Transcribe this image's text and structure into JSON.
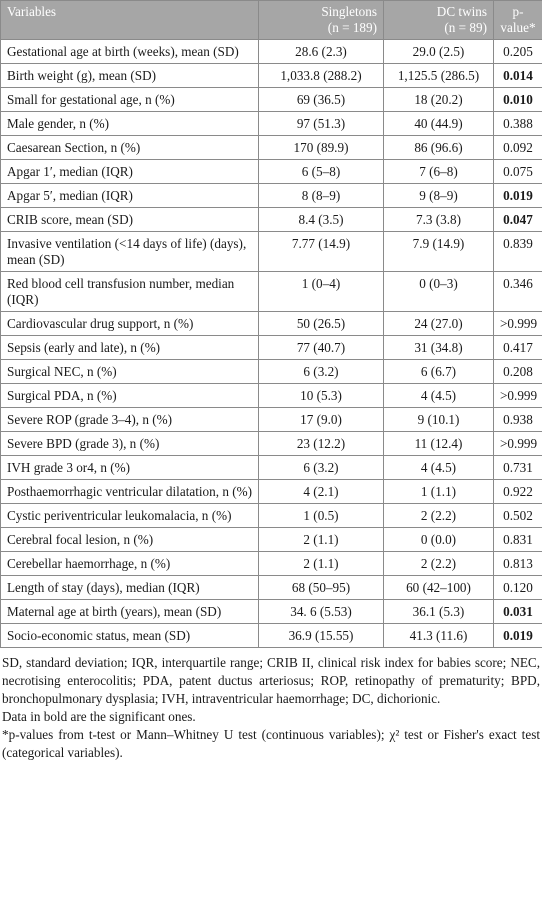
{
  "table": {
    "header": {
      "variables": "Variables",
      "col1": "Singletons",
      "col1_n": "(n = 189)",
      "col2": "DC twins",
      "col2_n": "(n = 89)",
      "col3": "p-value*"
    },
    "rows": [
      {
        "cells": [
          "Gestational age at birth (weeks), mean (SD)",
          "28.6 (2.3)",
          "29.0 (2.5)",
          "0.205"
        ],
        "significant": false
      },
      {
        "cells": [
          "Birth weight (g), mean (SD)",
          "1,033.8 (288.2)",
          "1,125.5 (286.5)",
          "0.014"
        ],
        "significant": true
      },
      {
        "cells": [
          "Small for gestational age, n (%)",
          "69 (36.5)",
          "18 (20.2)",
          "0.010"
        ],
        "significant": true
      },
      {
        "cells": [
          "Male gender, n (%)",
          "97 (51.3)",
          "40 (44.9)",
          "0.388"
        ],
        "significant": false
      },
      {
        "cells": [
          "Caesarean Section, n (%)",
          "170 (89.9)",
          "86 (96.6)",
          "0.092"
        ],
        "significant": false
      },
      {
        "cells": [
          "Apgar 1′, median (IQR)",
          "6 (5–8)",
          "7 (6–8)",
          "0.075"
        ],
        "significant": false
      },
      {
        "cells": [
          "Apgar 5′, median (IQR)",
          "8 (8–9)",
          "9 (8–9)",
          "0.019"
        ],
        "significant": true
      },
      {
        "cells": [
          "CRIB score, mean (SD)",
          "8.4 (3.5)",
          "7.3 (3.8)",
          "0.047"
        ],
        "significant": true
      },
      {
        "cells": [
          "Invasive ventilation (<14 days of life) (days), mean (SD)",
          "7.77 (14.9)",
          "7.9 (14.9)",
          "0.839"
        ],
        "significant": false
      },
      {
        "cells": [
          "Red blood cell transfusion number, median (IQR)",
          "1 (0–4)",
          "0 (0–3)",
          "0.346"
        ],
        "significant": false
      },
      {
        "cells": [
          "Cardiovascular drug support, n (%)",
          "50 (26.5)",
          "24 (27.0)",
          ">0.999"
        ],
        "significant": false
      },
      {
        "cells": [
          "Sepsis (early and late), n (%)",
          "77 (40.7)",
          "31 (34.8)",
          "0.417"
        ],
        "significant": false
      },
      {
        "cells": [
          "Surgical NEC, n (%)",
          "6 (3.2)",
          "6 (6.7)",
          "0.208"
        ],
        "significant": false
      },
      {
        "cells": [
          "Surgical PDA, n (%)",
          "10 (5.3)",
          "4 (4.5)",
          ">0.999"
        ],
        "significant": false
      },
      {
        "cells": [
          "Severe ROP (grade 3–4), n (%)",
          "17 (9.0)",
          "9 (10.1)",
          "0.938"
        ],
        "significant": false
      },
      {
        "cells": [
          "Severe BPD (grade 3), n (%)",
          "23 (12.2)",
          "11 (12.4)",
          ">0.999"
        ],
        "significant": false
      },
      {
        "cells": [
          "IVH grade 3 or4, n (%)",
          "6 (3.2)",
          "4 (4.5)",
          "0.731"
        ],
        "significant": false
      },
      {
        "cells": [
          "Posthaemorrhagic ventricular dilatation, n (%)",
          "4 (2.1)",
          "1 (1.1)",
          "0.922"
        ],
        "significant": false
      },
      {
        "cells": [
          "Cystic periventricular leukomalacia, n (%)",
          "1 (0.5)",
          "2 (2.2)",
          "0.502"
        ],
        "significant": false
      },
      {
        "cells": [
          "Cerebral focal lesion, n (%)",
          "2 (1.1)",
          "0 (0.0)",
          "0.831"
        ],
        "significant": false
      },
      {
        "cells": [
          "Cerebellar haemorrhage, n (%)",
          "2 (1.1)",
          "2 (2.2)",
          "0.813"
        ],
        "significant": false
      },
      {
        "cells": [
          "Length of stay (days), median (IQR)",
          "68 (50–95)",
          "60 (42–100)",
          "0.120"
        ],
        "significant": false
      },
      {
        "cells": [
          "Maternal age at birth (years), mean (SD)",
          "34. 6 (5.53)",
          "36.1 (5.3)",
          "0.031"
        ],
        "significant": true
      },
      {
        "cells": [
          "Socio-economic status, mean (SD)",
          "36.9 (15.55)",
          "41.3 (11.6)",
          "0.019"
        ],
        "significant": true
      }
    ]
  },
  "notes": [
    "SD, standard deviation; IQR, interquartile range; CRIB II, clinical risk index for babies score; NEC, necrotising enterocolitis; PDA, patent ductus arteriosus; ROP, retinopathy of prematurity; BPD, bronchopulmonary dysplasia; IVH, intraventricular haemorrhage; DC, dichorionic.",
    "Data in bold are the significant ones.",
    "*p-values from t-test or Mann–Whitney U test (continuous variables); χ² test or Fisher's exact test (categorical variables)."
  ]
}
